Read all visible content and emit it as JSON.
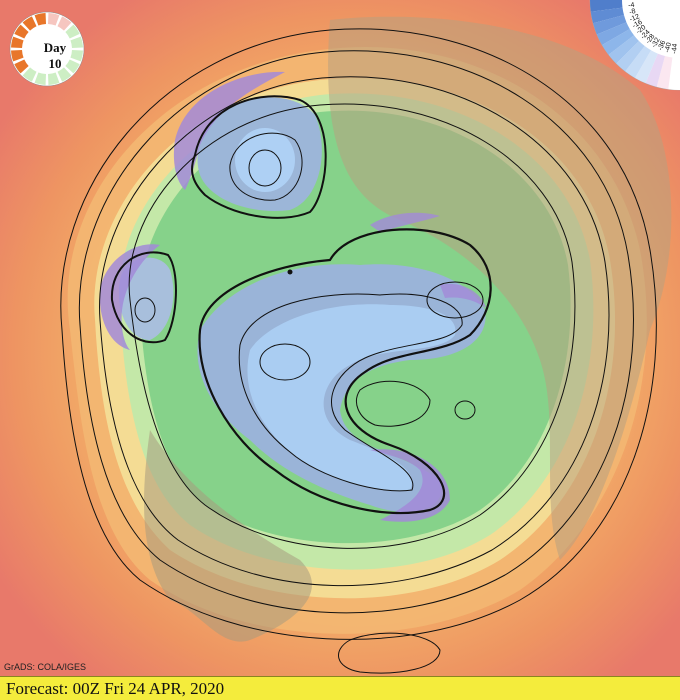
{
  "badge": {
    "label": "Day",
    "number": "10"
  },
  "legend": {
    "ticks": [
      "-4",
      "-8",
      "-12",
      "-16",
      "-20",
      "-24",
      "-28",
      "-32",
      "-36",
      "-40",
      "-44"
    ]
  },
  "credit": "GrADS: COLA/IGES",
  "footer": {
    "forecast_label": "Forecast: 00Z Fri 24 APR, 2020"
  },
  "colors": {
    "warm_edge": "#e8796a",
    "orange": "#f2a05f",
    "yellow": "#f2d58a",
    "light_green": "#b8e4a4",
    "green": "#7fcf80",
    "blue_grey": "#9ab4d8",
    "light_blue": "#aacdf2",
    "purple": "#a28ad8",
    "footer_bg": "#f4ec3c"
  }
}
